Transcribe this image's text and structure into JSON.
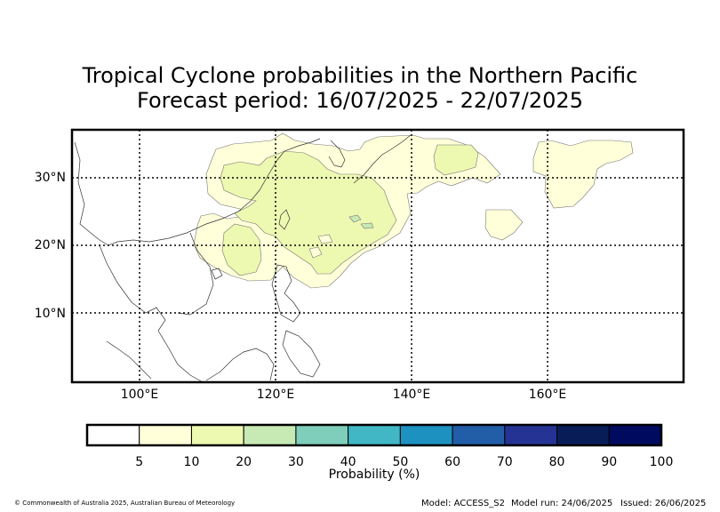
{
  "title_line1": "Tropical Cyclone probabilities in the Northern Pacific",
  "title_line2": "Forecast period: 16/07/2025 - 22/07/2025",
  "map": {
    "lat_labels": [
      "30°N",
      "20°N",
      "10°N"
    ],
    "lon_labels": [
      "100°E",
      "120°E",
      "140°E",
      "160°E"
    ]
  },
  "colorbar": {
    "label": "Probability (%)",
    "ticks": [
      "5",
      "10",
      "20",
      "30",
      "40",
      "50",
      "60",
      "70",
      "80",
      "90",
      "100"
    ],
    "colors": [
      "#ffffff",
      "#ffffd9",
      "#edf8b1",
      "#c7e9b4",
      "#7fcdbb",
      "#41b6c4",
      "#1d91c0",
      "#225ea8",
      "#253494",
      "#081d58",
      "#000a5e"
    ]
  },
  "footer": {
    "copyright": "© Commonwealth of Australia 2025, Australian Bureau of Meteorology",
    "model": "Model: ACCESS_S2",
    "model_run": "Model run: 24/06/2025",
    "issued": "Issued: 26/06/2025"
  }
}
